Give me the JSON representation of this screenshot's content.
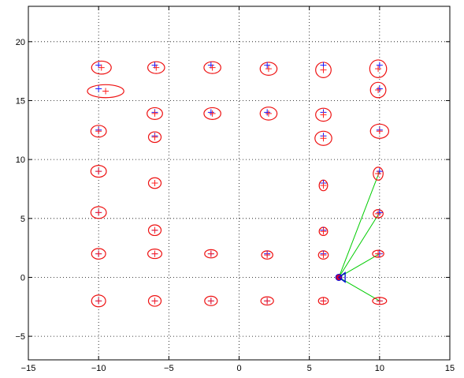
{
  "chart_data": {
    "type": "scatter",
    "xlim": [
      -15,
      15
    ],
    "ylim": [
      -7,
      23
    ],
    "xticks": [
      -15,
      -10,
      -5,
      0,
      5,
      10,
      15
    ],
    "yticks": [
      -5,
      0,
      5,
      10,
      15,
      20
    ],
    "xtick_labels": [
      "−15",
      "−10",
      "−5",
      "0",
      "5",
      "10",
      "15"
    ],
    "ytick_labels": [
      "−5",
      "0",
      "5",
      "10",
      "15",
      "20"
    ],
    "grid": "dotted",
    "colors": {
      "true_landmark": "#1a1aff",
      "estimate": "#ff2020",
      "ellipse": "#ee1111",
      "observation": "#00cc00",
      "robot": "#0000dd",
      "robot_fill": "#cc0033"
    },
    "robot": {
      "x": 7.1,
      "y": 0,
      "heading_deg": 0
    },
    "observations": [
      [
        10,
        9
      ],
      [
        10,
        5.5
      ],
      [
        10,
        2
      ],
      [
        10,
        -2
      ]
    ],
    "landmarks": [
      {
        "x": -10,
        "y": 18,
        "ex": -9.8,
        "ey": 17.8,
        "rx": 0.7,
        "ry": 0.55
      },
      {
        "x": -6,
        "y": 18,
        "ex": -5.9,
        "ey": 17.8,
        "rx": 0.6,
        "ry": 0.5
      },
      {
        "x": -2,
        "y": 18,
        "ex": -1.9,
        "ey": 17.8,
        "rx": 0.6,
        "ry": 0.5
      },
      {
        "x": 2,
        "y": 18,
        "ex": 2.1,
        "ey": 17.7,
        "rx": 0.6,
        "ry": 0.55
      },
      {
        "x": 6,
        "y": 18,
        "ex": 6,
        "ey": 17.6,
        "rx": 0.55,
        "ry": 0.65
      },
      {
        "x": 10,
        "y": 18,
        "ex": 9.9,
        "ey": 17.7,
        "rx": 0.6,
        "ry": 0.75
      },
      {
        "x": -10,
        "y": 16,
        "ex": -9.5,
        "ey": 15.8,
        "rx": 1.3,
        "ry": 0.55
      },
      {
        "x": 10,
        "y": 16,
        "ex": 9.9,
        "ey": 15.9,
        "rx": 0.55,
        "ry": 0.65
      },
      {
        "x": -6,
        "y": 14,
        "ex": -6,
        "ey": 13.9,
        "rx": 0.55,
        "ry": 0.5
      },
      {
        "x": -2,
        "y": 14,
        "ex": -1.9,
        "ey": 13.9,
        "rx": 0.6,
        "ry": 0.5
      },
      {
        "x": 2,
        "y": 14,
        "ex": 2.1,
        "ey": 13.9,
        "rx": 0.6,
        "ry": 0.55
      },
      {
        "x": 6,
        "y": 14,
        "ex": 6,
        "ey": 13.8,
        "rx": 0.55,
        "ry": 0.55
      },
      {
        "x": -10,
        "y": 12.5,
        "ex": -10,
        "ey": 12.4,
        "rx": 0.55,
        "ry": 0.5
      },
      {
        "x": -6,
        "y": 12,
        "ex": -6,
        "ey": 11.9,
        "rx": 0.45,
        "ry": 0.45
      },
      {
        "x": 6,
        "y": 12,
        "ex": 6,
        "ey": 11.8,
        "rx": 0.6,
        "ry": 0.6
      },
      {
        "x": 10,
        "y": 12.5,
        "ex": 10,
        "ey": 12.4,
        "rx": 0.65,
        "ry": 0.6
      },
      {
        "x": -10,
        "y": 9,
        "ex": -10,
        "ey": 9,
        "rx": 0.55,
        "ry": 0.5
      },
      {
        "x": -6,
        "y": 8,
        "ex": -6,
        "ey": 8,
        "rx": 0.45,
        "ry": 0.45
      },
      {
        "x": 6,
        "y": 8,
        "ex": 6,
        "ey": 7.8,
        "rx": 0.3,
        "ry": 0.45
      },
      {
        "x": 10,
        "y": 9,
        "ex": 9.9,
        "ey": 8.8,
        "rx": 0.35,
        "ry": 0.55
      },
      {
        "x": -10,
        "y": 5.5,
        "ex": -10,
        "ey": 5.5,
        "rx": 0.55,
        "ry": 0.5
      },
      {
        "x": -6,
        "y": 4,
        "ex": -6,
        "ey": 4,
        "rx": 0.45,
        "ry": 0.45
      },
      {
        "x": 6,
        "y": 4,
        "ex": 6,
        "ey": 3.9,
        "rx": 0.3,
        "ry": 0.35
      },
      {
        "x": 10,
        "y": 5.5,
        "ex": 9.9,
        "ey": 5.4,
        "rx": 0.35,
        "ry": 0.35
      },
      {
        "x": -10,
        "y": 2,
        "ex": -10,
        "ey": 2,
        "rx": 0.5,
        "ry": 0.45
      },
      {
        "x": -6,
        "y": 2,
        "ex": -6,
        "ey": 2,
        "rx": 0.5,
        "ry": 0.4
      },
      {
        "x": -2,
        "y": 2,
        "ex": -2,
        "ey": 2,
        "rx": 0.45,
        "ry": 0.35
      },
      {
        "x": 2,
        "y": 2,
        "ex": 2,
        "ey": 1.9,
        "rx": 0.4,
        "ry": 0.35
      },
      {
        "x": 6,
        "y": 2,
        "ex": 6,
        "ey": 1.9,
        "rx": 0.35,
        "ry": 0.35
      },
      {
        "x": 10,
        "y": 2,
        "ex": 9.9,
        "ey": 2,
        "rx": 0.4,
        "ry": 0.3
      },
      {
        "x": -10,
        "y": -2,
        "ex": -10,
        "ey": -2,
        "rx": 0.5,
        "ry": 0.5
      },
      {
        "x": -6,
        "y": -2,
        "ex": -6,
        "ey": -2,
        "rx": 0.45,
        "ry": 0.45
      },
      {
        "x": -2,
        "y": -2,
        "ex": -2,
        "ey": -2,
        "rx": 0.45,
        "ry": 0.4
      },
      {
        "x": 2,
        "y": -2,
        "ex": 2,
        "ey": -2,
        "rx": 0.45,
        "ry": 0.35
      },
      {
        "x": 6,
        "y": -2,
        "ex": 6,
        "ey": -2,
        "rx": 0.35,
        "ry": 0.3
      },
      {
        "x": 10,
        "y": -2,
        "ex": 10,
        "ey": -2,
        "rx": 0.5,
        "ry": 0.3
      }
    ]
  }
}
